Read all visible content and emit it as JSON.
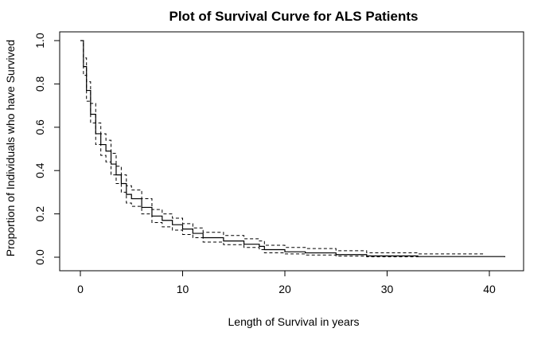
{
  "chart_data": {
    "type": "line",
    "title": "Plot of Survival Curve for ALS Patients",
    "xlabel": "Length of Survival in years",
    "ylabel": "Proportion of Individuals who have Survived",
    "xlim": [
      0,
      42
    ],
    "ylim": [
      0,
      1
    ],
    "xticks": [
      "0",
      "10",
      "20",
      "30",
      "40"
    ],
    "yticks": [
      "0.0",
      "0.2",
      "0.4",
      "0.6",
      "0.8",
      "1.0"
    ],
    "grid": false,
    "legend": "none",
    "step": true,
    "series": [
      {
        "role": "estimate",
        "style": "solid",
        "x": [
          0,
          0.3,
          0.6,
          1,
          1.5,
          2,
          2.5,
          3,
          3.5,
          4,
          4.5,
          5,
          6,
          7,
          8,
          9,
          10,
          11,
          12,
          14,
          16,
          17.5,
          18,
          20,
          22,
          25,
          28,
          33,
          41.5
        ],
        "y": [
          1.0,
          0.88,
          0.77,
          0.66,
          0.57,
          0.52,
          0.49,
          0.43,
          0.38,
          0.34,
          0.29,
          0.27,
          0.23,
          0.19,
          0.17,
          0.15,
          0.13,
          0.11,
          0.09,
          0.075,
          0.06,
          0.05,
          0.035,
          0.025,
          0.02,
          0.012,
          0.006,
          0.003,
          0.0
        ]
      },
      {
        "role": "upper-bound",
        "style": "dashed",
        "x": [
          0,
          0.3,
          0.6,
          1,
          1.5,
          2,
          2.5,
          3,
          3.5,
          4,
          4.5,
          5,
          6,
          7,
          8,
          9,
          10,
          11,
          12,
          14,
          16,
          17.5,
          18,
          20,
          22,
          25,
          28,
          33,
          39.5
        ],
        "y": [
          1.0,
          0.92,
          0.81,
          0.71,
          0.62,
          0.57,
          0.54,
          0.48,
          0.42,
          0.38,
          0.33,
          0.31,
          0.27,
          0.22,
          0.2,
          0.18,
          0.155,
          0.135,
          0.115,
          0.1,
          0.085,
          0.075,
          0.055,
          0.045,
          0.04,
          0.03,
          0.02,
          0.015,
          0.015
        ]
      },
      {
        "role": "lower-bound",
        "style": "dashed",
        "x": [
          0,
          0.3,
          0.6,
          1,
          1.5,
          2,
          2.5,
          3,
          3.5,
          4,
          4.5,
          5,
          6,
          7,
          8,
          9,
          10,
          11,
          12,
          14,
          16,
          17.5,
          18,
          20,
          22,
          25,
          28,
          33
        ],
        "y": [
          1.0,
          0.84,
          0.72,
          0.62,
          0.52,
          0.47,
          0.44,
          0.38,
          0.34,
          0.3,
          0.25,
          0.235,
          0.2,
          0.16,
          0.14,
          0.125,
          0.105,
          0.09,
          0.07,
          0.058,
          0.045,
          0.035,
          0.02,
          0.015,
          0.01,
          0.005,
          0.002,
          0.0
        ]
      }
    ]
  }
}
